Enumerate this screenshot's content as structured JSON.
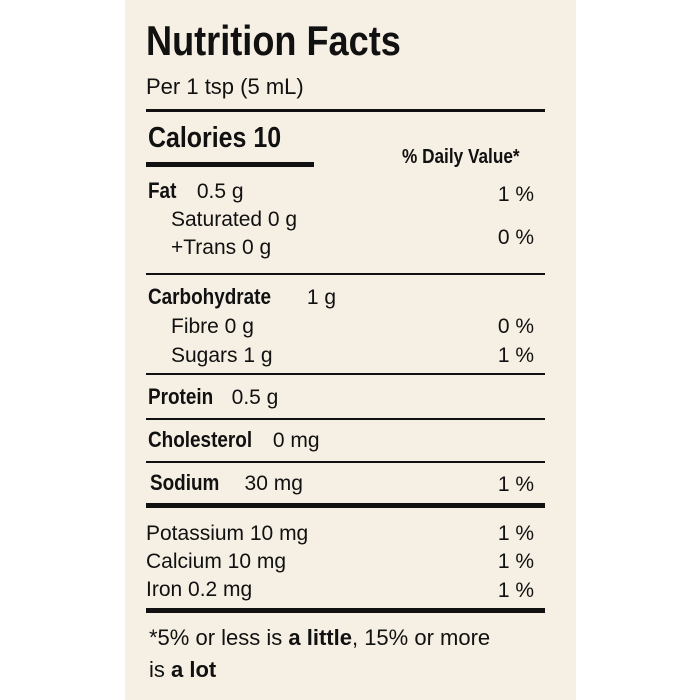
{
  "title": "Nutrition Facts",
  "serving": "Per 1 tsp (5 mL)",
  "calories_label": "Calories 10",
  "dv_header": "% Daily Value*",
  "nutrients": {
    "fat": {
      "name": "Fat",
      "amount": "0.5 g",
      "dv": "1 %"
    },
    "saturated": {
      "name": "Saturated 0 g"
    },
    "trans": {
      "name": "+Trans 0 g",
      "dv": "0 %"
    },
    "carbohydrate": {
      "name": "Carbohydrate",
      "amount": "1 g"
    },
    "fibre": {
      "name": "Fibre 0 g",
      "dv": "0 %"
    },
    "sugars": {
      "name": "Sugars 1 g",
      "dv": "1 %"
    },
    "protein": {
      "name": "Protein",
      "amount": "0.5 g"
    },
    "cholesterol": {
      "name": "Cholesterol",
      "amount": "0 mg"
    },
    "sodium": {
      "name": "Sodium",
      "amount": "30 mg",
      "dv": "1 %"
    },
    "potassium": {
      "name": "Potassium 10 mg",
      "dv": "1 %"
    },
    "calcium": {
      "name": "Calcium 10 mg",
      "dv": "1 %"
    },
    "iron": {
      "name": "Iron 0.2 mg",
      "dv": "1 %"
    }
  },
  "footnote": {
    "part1": "*5% or less is ",
    "little": "a little",
    "part2": ", 15% or more",
    "part3": "is ",
    "lot": "a lot"
  },
  "colors": {
    "background": "#f6efe3",
    "text": "#111111"
  }
}
